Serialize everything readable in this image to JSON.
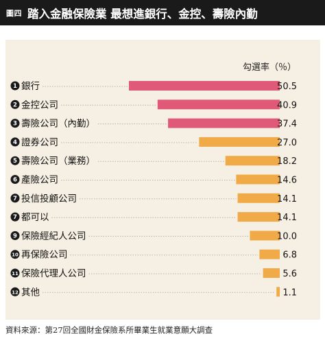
{
  "header": {
    "figure_label": "圖四",
    "title": "踏入金融保險業 最想進銀行、金控、壽險內勤"
  },
  "footer": {
    "source": "資料來源：第27回全國財金保險系所畢業生就業意願大調查"
  },
  "colors": {
    "header_bg": "#1a1a1a",
    "panel_bg": "#f6efe3",
    "top_bar": "#e05a77",
    "other_bar": "#f0aa48",
    "badge": "#1a1a1a"
  },
  "chart_data": {
    "type": "bar",
    "orientation": "horizontal",
    "unit_label": "勾選率（％）",
    "xlim": [
      0,
      55
    ],
    "grid": false,
    "legend": "none",
    "categories": [
      {
        "rank": "1",
        "label": "銀行",
        "value": 50.5,
        "value_label": "50.5",
        "highlight": true
      },
      {
        "rank": "2",
        "label": "金控公司",
        "value": 40.9,
        "value_label": "40.9",
        "highlight": true
      },
      {
        "rank": "3",
        "label": "壽險公司（內勤）",
        "value": 37.4,
        "value_label": "37.4",
        "highlight": true
      },
      {
        "rank": "4",
        "label": "證券公司",
        "value": 27.0,
        "value_label": "27.0",
        "highlight": false
      },
      {
        "rank": "5",
        "label": "壽險公司（業務）",
        "value": 18.2,
        "value_label": "18.2",
        "highlight": false
      },
      {
        "rank": "6",
        "label": "產險公司",
        "value": 14.6,
        "value_label": "14.6",
        "highlight": false
      },
      {
        "rank": "7",
        "label": "投信投顧公司",
        "value": 14.1,
        "value_label": "14.1",
        "highlight": false
      },
      {
        "rank": "7",
        "label": "都可以",
        "value": 14.1,
        "value_label": "14.1",
        "highlight": false
      },
      {
        "rank": "9",
        "label": "保險經紀人公司",
        "value": 10.0,
        "value_label": "10.0",
        "highlight": false
      },
      {
        "rank": "10",
        "label": "再保險公司",
        "value": 6.8,
        "value_label": "6.8",
        "highlight": false
      },
      {
        "rank": "11",
        "label": "保險代理人公司",
        "value": 5.6,
        "value_label": "5.6",
        "highlight": false
      },
      {
        "rank": "12",
        "label": "其他",
        "value": 1.1,
        "value_label": "1.1",
        "highlight": false
      }
    ]
  }
}
